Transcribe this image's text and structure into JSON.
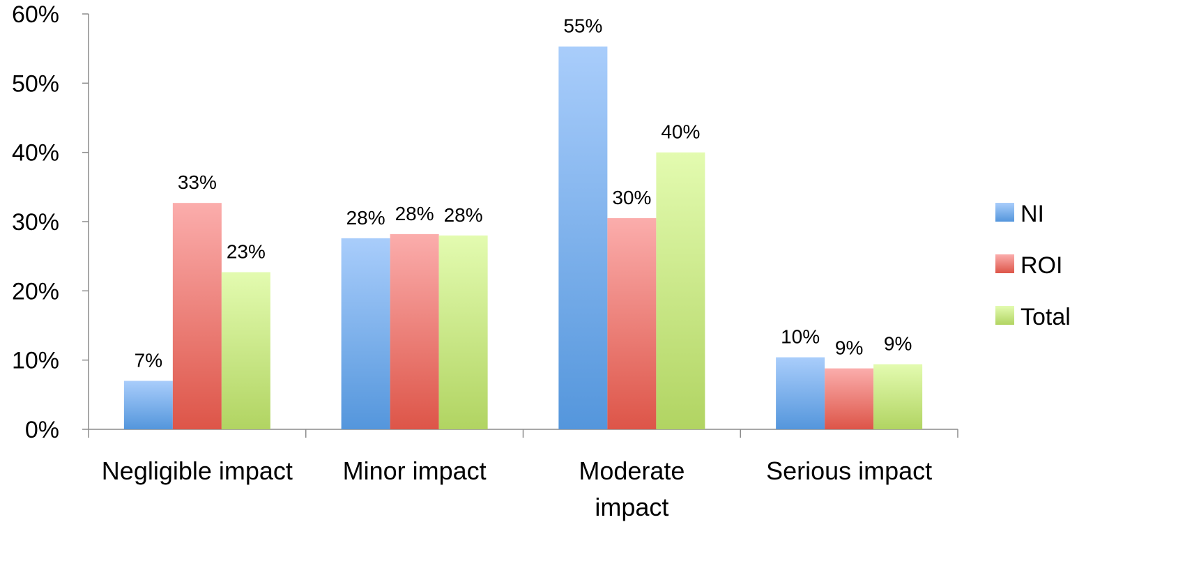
{
  "chart_data": {
    "type": "bar",
    "title": "",
    "xlabel": "",
    "ylabel": "",
    "ylim": [
      0,
      60
    ],
    "yticks": [
      "0%",
      "10%",
      "20%",
      "30%",
      "40%",
      "50%",
      "60%"
    ],
    "ytick_values": [
      0,
      10,
      20,
      30,
      40,
      50,
      60
    ],
    "categories": [
      [
        "Negligible impact"
      ],
      [
        "Minor impact"
      ],
      [
        "Moderate",
        "impact"
      ],
      [
        "Serious impact"
      ]
    ],
    "series": [
      {
        "name": "NI",
        "values": [
          7,
          27.6,
          55.3,
          10.4
        ],
        "labels": [
          "7%",
          "28%",
          "55%",
          "10%"
        ],
        "color_top": "#a9cdfb",
        "color_bottom": "#5496dc"
      },
      {
        "name": "ROI",
        "values": [
          32.7,
          28.2,
          30.5,
          8.8
        ],
        "labels": [
          "33%",
          "28%",
          "30%",
          "9%"
        ],
        "color_top": "#fbadac",
        "color_bottom": "#dd5548"
      },
      {
        "name": "Total",
        "values": [
          22.7,
          28.0,
          40.0,
          9.4
        ],
        "labels": [
          "23%",
          "28%",
          "40%",
          "9%"
        ],
        "color_top": "#e3fbb0",
        "color_bottom": "#b1d462"
      }
    ],
    "grid": false,
    "legend_position": "right"
  }
}
